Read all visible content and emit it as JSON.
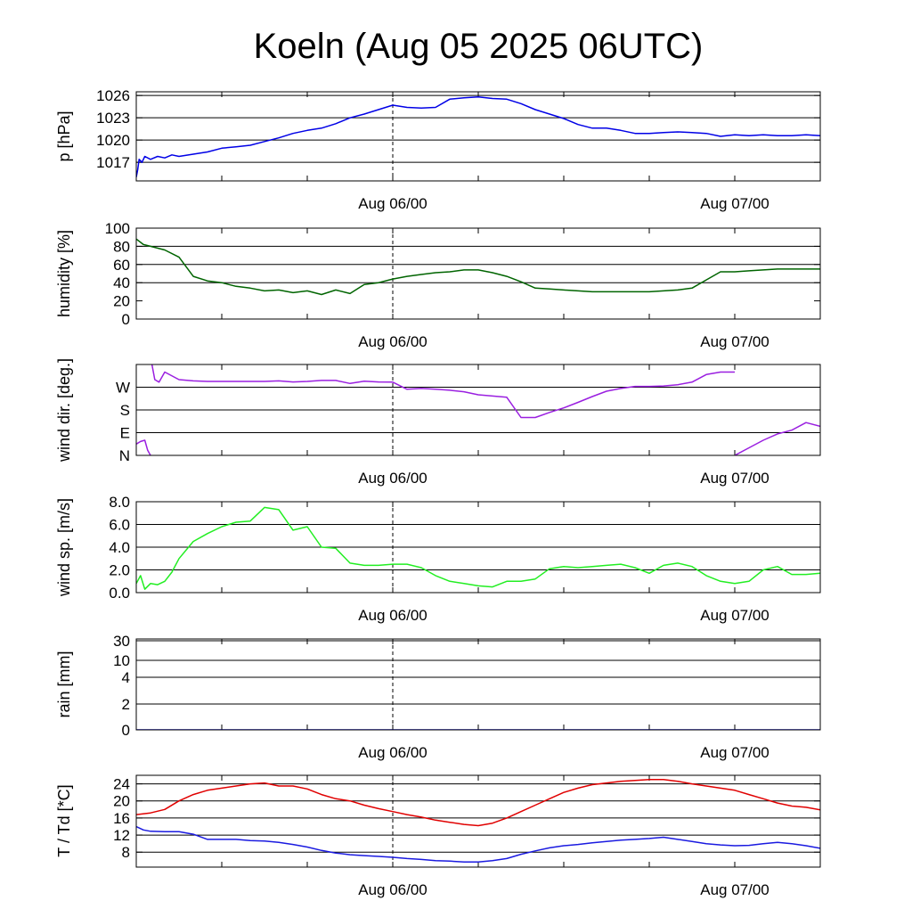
{
  "title": "Koeln (Aug 05 2025 06UTC)",
  "x_ticks": [
    "Aug 06/00",
    "Aug 07/00"
  ],
  "colors": {
    "pressure": "#0000e6",
    "humidity": "#006400",
    "wind_dir": "#9a1fe0",
    "wind_speed": "#22ee22",
    "temperature": "#e00000",
    "dewpoint": "#1a1ae0",
    "grid": "#000000"
  },
  "chart_data": [
    {
      "type": "line",
      "id": "pressure",
      "ylabel": "p [hPa]",
      "x_unit": "hours since Aug 05 00UTC",
      "xlim": [
        6,
        54
      ],
      "ylim": [
        1014.5,
        1026.5
      ],
      "yticks": [
        1017,
        1020,
        1023,
        1026
      ],
      "ytick_labels": [
        "1017",
        "1020",
        "1023",
        "1026"
      ],
      "grid_y": [
        1017,
        1020,
        1023,
        1026
      ],
      "series": [
        {
          "color_key": "pressure",
          "x": [
            6,
            6.1,
            6.2,
            6.4,
            6.6,
            7,
            7.5,
            8,
            8.5,
            9,
            10,
            11,
            12,
            13,
            14,
            15,
            16,
            17,
            18,
            19,
            20,
            21,
            22,
            23,
            24,
            25,
            26,
            27,
            28,
            29,
            30,
            31,
            32,
            33,
            34,
            35,
            36,
            37,
            38,
            39,
            40,
            41,
            42,
            43,
            44,
            45,
            46,
            47,
            48,
            49,
            50,
            51,
            52,
            53,
            54
          ],
          "y": [
            1015.0,
            1016.0,
            1017.4,
            1017.0,
            1017.8,
            1017.4,
            1017.8,
            1017.6,
            1018.0,
            1017.8,
            1018.1,
            1018.4,
            1018.9,
            1019.1,
            1019.3,
            1019.8,
            1020.3,
            1020.9,
            1021.3,
            1021.6,
            1022.2,
            1023.0,
            1023.5,
            1024.1,
            1024.7,
            1024.4,
            1024.3,
            1024.4,
            1025.5,
            1025.7,
            1025.8,
            1025.6,
            1025.5,
            1024.9,
            1024.1,
            1023.5,
            1022.9,
            1022.1,
            1021.6,
            1021.6,
            1021.3,
            1020.9,
            1020.9,
            1021.0,
            1021.1,
            1021.0,
            1020.9,
            1020.5,
            1020.7,
            1020.6,
            1020.7,
            1020.6,
            1020.6,
            1020.7,
            1020.6
          ]
        }
      ]
    },
    {
      "type": "line",
      "id": "humidity",
      "ylabel": "humidity [%]",
      "x_unit": "hours since Aug 05 00UTC",
      "xlim": [
        6,
        54
      ],
      "ylim": [
        0,
        100
      ],
      "yticks": [
        0,
        20,
        40,
        60,
        80,
        100
      ],
      "ytick_labels": [
        "0",
        "20",
        "40",
        "60",
        "80",
        "100"
      ],
      "grid_y": [
        40,
        60,
        80
      ],
      "series": [
        {
          "color_key": "humidity",
          "x": [
            6,
            6.5,
            7,
            8,
            9,
            10,
            11,
            12,
            13,
            14,
            15,
            16,
            17,
            18,
            19,
            20,
            21,
            22,
            23,
            24,
            25,
            26,
            27,
            28,
            29,
            30,
            31,
            32,
            33,
            34,
            35,
            36,
            37,
            38,
            39,
            40,
            41,
            42,
            43,
            44,
            45,
            46,
            47,
            48,
            49,
            50,
            51,
            52,
            53,
            54
          ],
          "y": [
            88,
            82,
            80,
            76,
            68,
            47,
            42,
            40,
            36,
            34,
            31,
            32,
            29,
            31,
            27,
            32,
            28,
            38,
            40,
            44,
            47,
            49,
            51,
            52,
            54,
            54,
            51,
            47,
            41,
            34,
            33,
            32,
            31,
            30,
            30,
            30,
            30,
            30,
            31,
            32,
            34,
            43,
            52,
            52,
            53,
            54,
            55,
            55,
            55,
            55
          ]
        }
      ]
    },
    {
      "type": "line",
      "id": "wind_dir",
      "ylabel": "wind dir. [deg.]",
      "x_unit": "hours since Aug 05 00UTC",
      "xlim": [
        6,
        54
      ],
      "ylim": [
        0,
        360
      ],
      "yticks": [
        0,
        90,
        180,
        270
      ],
      "ytick_labels": [
        "N",
        "E",
        "S",
        "W"
      ],
      "grid_y": [
        0,
        90,
        180,
        270,
        360
      ],
      "series": [
        {
          "color_key": "wind_dir",
          "x": [
            6,
            6.3,
            6.6,
            6.8,
            7
          ],
          "y": [
            45,
            55,
            60,
            20,
            0
          ]
        },
        {
          "color_key": "wind_dir",
          "x": [
            7.1,
            7.3,
            7.6,
            8,
            9,
            10,
            11,
            12,
            13,
            14,
            15,
            16,
            17,
            18,
            19,
            20,
            21,
            22,
            23,
            24,
            25,
            26,
            27,
            28,
            29,
            30,
            31,
            32,
            33,
            34,
            35,
            36,
            37,
            38,
            39,
            40,
            41,
            42,
            43,
            44,
            45,
            46,
            47,
            48
          ],
          "y": [
            360,
            300,
            290,
            330,
            300,
            295,
            293,
            293,
            293,
            293,
            293,
            295,
            291,
            293,
            297,
            297,
            285,
            294,
            291,
            290,
            262,
            265,
            262,
            258,
            252,
            240,
            235,
            230,
            150,
            150,
            170,
            188,
            210,
            233,
            254,
            265,
            273,
            273,
            275,
            280,
            290,
            320,
            330,
            330
          ]
        },
        {
          "color_key": "wind_dir",
          "x": [
            48,
            49,
            50,
            51,
            52,
            53,
            54
          ],
          "y": [
            0,
            30,
            60,
            85,
            100,
            130,
            115
          ]
        }
      ]
    },
    {
      "type": "line",
      "id": "wind_speed",
      "ylabel": "wind sp. [m/s]",
      "x_unit": "hours since Aug 05 00UTC",
      "xlim": [
        6,
        54
      ],
      "ylim": [
        0,
        8.0
      ],
      "yticks": [
        0,
        2,
        4,
        6,
        8
      ],
      "ytick_labels": [
        "0.0",
        "2.0",
        "4.0",
        "6.0",
        "8.0"
      ],
      "grid_y": [
        2,
        4,
        6,
        8
      ],
      "series": [
        {
          "color_key": "wind_speed",
          "x": [
            6,
            6.3,
            6.6,
            7,
            7.5,
            8,
            8.5,
            9,
            10,
            11,
            12,
            13,
            14,
            15,
            16,
            17,
            18,
            19,
            20,
            21,
            22,
            23,
            24,
            25,
            26,
            27,
            28,
            29,
            30,
            31,
            32,
            33,
            34,
            35,
            36,
            37,
            38,
            39,
            40,
            41,
            42,
            43,
            44,
            45,
            46,
            47,
            48,
            49,
            50,
            51,
            52,
            53,
            54
          ],
          "y": [
            0.8,
            1.5,
            0.3,
            0.8,
            0.7,
            1.0,
            1.8,
            3.0,
            4.5,
            5.2,
            5.8,
            6.2,
            6.3,
            7.5,
            7.3,
            5.5,
            5.8,
            4.0,
            3.9,
            2.6,
            2.4,
            2.4,
            2.5,
            2.5,
            2.2,
            1.5,
            1.0,
            0.8,
            0.6,
            0.5,
            1.0,
            1.0,
            1.2,
            2.1,
            2.3,
            2.2,
            2.3,
            2.4,
            2.5,
            2.2,
            1.7,
            2.4,
            2.6,
            2.3,
            1.5,
            1.0,
            0.8,
            1.0,
            2.0,
            2.3,
            1.6,
            1.6,
            1.7
          ]
        }
      ]
    },
    {
      "type": "line",
      "id": "rain",
      "ylabel": "rain [mm]",
      "x_unit": "hours since Aug 05 00UTC",
      "xlim": [
        6,
        54
      ],
      "yscale": "nonlinear",
      "ylim": [
        0,
        30
      ],
      "yticks": [
        0,
        2,
        4,
        10,
        30
      ],
      "ytick_labels": [
        "0",
        "2",
        "4",
        "10",
        "30"
      ],
      "grid_y": [
        2,
        4,
        10,
        30
      ],
      "series": [
        {
          "color_key": "pressure",
          "x": [
            6,
            54
          ],
          "y": [
            0,
            0
          ]
        }
      ]
    },
    {
      "type": "line",
      "id": "temperature",
      "ylabel": "T / Td [*C]",
      "x_unit": "hours since Aug 05 00UTC",
      "xlim": [
        6,
        54
      ],
      "ylim": [
        4.5,
        26
      ],
      "yticks": [
        8,
        12,
        16,
        20,
        24
      ],
      "ytick_labels": [
        "8",
        "12",
        "16",
        "20",
        "24"
      ],
      "grid_y": [
        8,
        12,
        16,
        20,
        24
      ],
      "series": [
        {
          "color_key": "temperature",
          "x": [
            6,
            7,
            8,
            9,
            10,
            11,
            12,
            13,
            14,
            15,
            16,
            17,
            18,
            19,
            20,
            21,
            22,
            23,
            24,
            25,
            26,
            27,
            28,
            29,
            30,
            31,
            32,
            33,
            34,
            35,
            36,
            37,
            38,
            39,
            40,
            41,
            42,
            43,
            44,
            45,
            46,
            47,
            48,
            49,
            50,
            51,
            52,
            53,
            54
          ],
          "y": [
            16.8,
            17.2,
            18.0,
            20.0,
            21.5,
            22.5,
            23.0,
            23.5,
            24.0,
            24.2,
            23.5,
            23.5,
            22.8,
            21.5,
            20.5,
            20.0,
            19.0,
            18.2,
            17.5,
            16.8,
            16.2,
            15.5,
            15.0,
            14.5,
            14.2,
            14.8,
            16.0,
            17.5,
            19.0,
            20.5,
            22.0,
            23.0,
            23.8,
            24.2,
            24.6,
            24.8,
            25.0,
            25.0,
            24.6,
            24.0,
            23.5,
            23.0,
            22.5,
            21.5,
            20.5,
            19.5,
            18.8,
            18.5,
            17.9
          ]
        },
        {
          "name": "Td",
          "color_key": "dewpoint",
          "x": [
            6,
            6.5,
            7,
            8,
            9,
            10,
            11,
            12,
            13,
            14,
            15,
            16,
            17,
            18,
            19,
            20,
            21,
            22,
            23,
            24,
            25,
            26,
            27,
            28,
            29,
            30,
            31,
            32,
            33,
            34,
            35,
            36,
            37,
            38,
            39,
            40,
            41,
            42,
            43,
            44,
            45,
            46,
            47,
            48,
            49,
            50,
            51,
            52,
            53,
            54
          ],
          "y": [
            14.0,
            13.2,
            12.9,
            12.8,
            12.8,
            12.2,
            11.0,
            11.0,
            11.0,
            10.7,
            10.6,
            10.3,
            9.8,
            9.2,
            8.4,
            7.8,
            7.4,
            7.2,
            7.0,
            6.8,
            6.5,
            6.3,
            6.0,
            5.9,
            5.7,
            5.7,
            6.0,
            6.5,
            7.5,
            8.3,
            9.0,
            9.5,
            9.8,
            10.2,
            10.5,
            10.8,
            11.0,
            11.2,
            11.5,
            11.0,
            10.5,
            10.0,
            9.7,
            9.5,
            9.6,
            10.0,
            10.3,
            10.0,
            9.5,
            8.9
          ]
        }
      ]
    }
  ]
}
